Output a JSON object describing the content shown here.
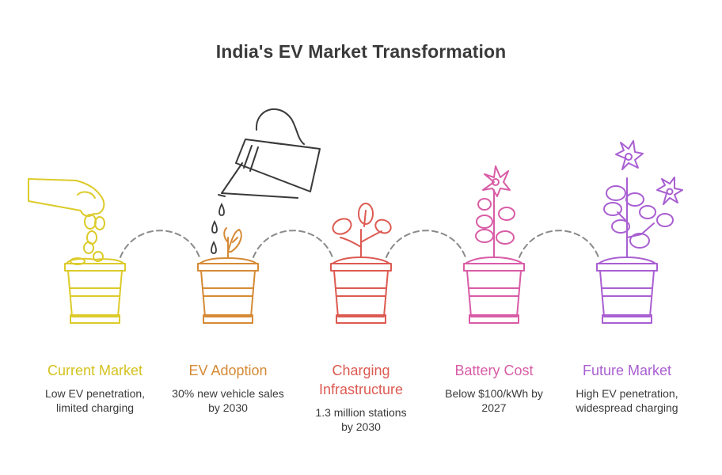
{
  "title": "India's EV Market Transformation",
  "colors": {
    "yellow": "#dccb2a",
    "orange": "#d68a35",
    "red": "#dd5a52",
    "pink": "#d95ca6",
    "purple": "#a95fd2",
    "gray": "#3a3a3a",
    "dash": "#8a8a8a"
  },
  "stages": [
    {
      "title": "Current Market",
      "description": "Low EV penetration, limited charging",
      "color": "#d4c21e",
      "icon": "hand-dropping-seeds-icon"
    },
    {
      "title": "EV Adoption",
      "description": "30% new vehicle sales by 2030",
      "color": "#d68a35",
      "icon": "sprout-icon"
    },
    {
      "title": "Charging Infrastructure",
      "description": "1.3 million stations by 2030",
      "color": "#dd5a52",
      "icon": "leafy-plant-icon"
    },
    {
      "title": "Battery Cost",
      "description": "Below $100/kWh by 2027",
      "color": "#d95ca6",
      "icon": "flowering-plant-icon"
    },
    {
      "title": "Future Market",
      "description": "High EV penetration, widespread charging",
      "color": "#a95fd2",
      "icon": "blooming-plant-icon"
    }
  ]
}
